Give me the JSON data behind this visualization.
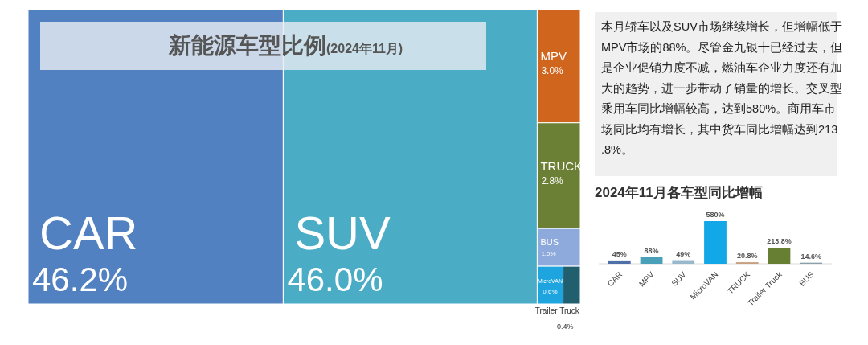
{
  "chart_data": [
    {
      "type": "other",
      "title": "新能源车型比例",
      "subtitle": "(2024年11月)",
      "categories": [
        "CAR",
        "SUV",
        "MPV",
        "TRUCK",
        "BUS",
        "MicroVAN",
        "Trailer Truck"
      ],
      "values": [
        46.2,
        46.0,
        3.0,
        2.8,
        1.0,
        0.6,
        0.4
      ],
      "value_labels": [
        "46.2%",
        "46.0%",
        "3.0%",
        "2.8%",
        "1.0%",
        "0.6%",
        "0.4%"
      ],
      "colors": [
        "#5181c0",
        "#4bacc6",
        "#d0651e",
        "#6b7f35",
        "#8eaadc",
        "#1ea5df",
        "#215f6e"
      ]
    },
    {
      "type": "other",
      "annotations": [
        "本月轿车以及SUV市场继续增长，但增幅低于MPV市场的88%。尽管金九银十已经过去，但是企业促销力度不减，燃油车企业力度还有加大的趋势，进一步带动了销量的增长。交叉型乘用车同比增幅较高，达到580%。商用车市场同比均有增长，其中货车同比增幅达到213.8%。"
      ]
    },
    {
      "type": "bar",
      "title": "2024年11月各车型同比增幅",
      "categories": [
        "CAR",
        "MPV",
        "SUV",
        "MicroVAN",
        "TRUCK",
        "Trailer Truck",
        "BUS"
      ],
      "values": [
        45,
        88,
        49,
        580,
        20.8,
        213.8,
        14.6
      ],
      "value_labels": [
        "45%",
        "88%",
        "49%",
        "580%",
        "20.8%",
        "213.8%",
        "14.6%"
      ],
      "colors": [
        "#4f6fa8",
        "#4aa0b8",
        "#9ab8cc",
        "#12a8e8",
        "#c8a080",
        "#667f33",
        "#8aa0a8"
      ]
    }
  ]
}
